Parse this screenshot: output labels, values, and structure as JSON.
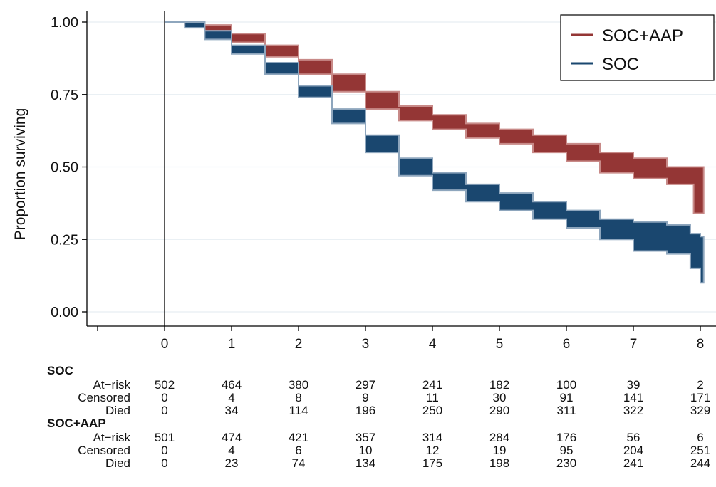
{
  "chart_data": {
    "type": "area",
    "title": "",
    "xlabel": "",
    "ylabel": "Proportion surviving",
    "xlim": [
      -1,
      8.1
    ],
    "ylim": [
      0,
      1
    ],
    "x_ticks": [
      0,
      1,
      2,
      3,
      4,
      5,
      6,
      7,
      8
    ],
    "y_ticks": [
      "0.00",
      "0.25",
      "0.50",
      "0.75",
      "1.00"
    ],
    "grid": true,
    "legend_position": "top-right",
    "colors": {
      "SOC+AAP": "#943635",
      "SOC": "#1a476f",
      "SOC_band_edge": "#8ea6bd",
      "SOC+AAP_band_edge": "#c88a88",
      "grid": "#e7eef2"
    },
    "series": [
      {
        "name": "SOC+AAP",
        "x": [
          0,
          0.3,
          0.6,
          1.0,
          1.5,
          2.0,
          2.5,
          3.0,
          3.5,
          4.0,
          4.5,
          5.0,
          5.5,
          6.0,
          6.5,
          7.0,
          7.5,
          7.9,
          8.05
        ],
        "lower": [
          1.0,
          0.99,
          0.97,
          0.93,
          0.88,
          0.82,
          0.76,
          0.7,
          0.66,
          0.63,
          0.6,
          0.58,
          0.55,
          0.52,
          0.48,
          0.46,
          0.44,
          0.34,
          0.34
        ],
        "upper": [
          1.0,
          1.0,
          0.99,
          0.96,
          0.92,
          0.87,
          0.82,
          0.76,
          0.71,
          0.68,
          0.65,
          0.63,
          0.61,
          0.58,
          0.55,
          0.53,
          0.5,
          0.5,
          0.5
        ]
      },
      {
        "name": "SOC",
        "x": [
          0,
          0.3,
          0.6,
          1.0,
          1.5,
          2.0,
          2.5,
          3.0,
          3.5,
          4.0,
          4.5,
          5.0,
          5.5,
          6.0,
          6.5,
          7.0,
          7.5,
          7.85,
          8.0,
          8.05
        ],
        "lower": [
          1.0,
          0.98,
          0.94,
          0.89,
          0.82,
          0.74,
          0.65,
          0.55,
          0.47,
          0.42,
          0.38,
          0.35,
          0.32,
          0.29,
          0.25,
          0.21,
          0.2,
          0.15,
          0.1,
          0.1
        ],
        "upper": [
          1.0,
          1.0,
          0.97,
          0.92,
          0.86,
          0.78,
          0.7,
          0.61,
          0.53,
          0.48,
          0.44,
          0.41,
          0.38,
          0.35,
          0.32,
          0.31,
          0.3,
          0.27,
          0.26,
          0.26
        ]
      }
    ],
    "risk_table": {
      "columns": [
        "0",
        "1",
        "2",
        "3",
        "4",
        "5",
        "6",
        "7",
        "8"
      ],
      "groups": [
        {
          "name": "SOC",
          "rows": [
            {
              "label": "At−risk",
              "values": [
                "502",
                "464",
                "380",
                "297",
                "241",
                "182",
                "100",
                "39",
                "2"
              ]
            },
            {
              "label": "Censored",
              "values": [
                "0",
                "4",
                "8",
                "9",
                "11",
                "30",
                "91",
                "141",
                "171"
              ]
            },
            {
              "label": "Died",
              "values": [
                "0",
                "34",
                "114",
                "196",
                "250",
                "290",
                "311",
                "322",
                "329"
              ]
            }
          ]
        },
        {
          "name": "SOC+AAP",
          "rows": [
            {
              "label": "At−risk",
              "values": [
                "501",
                "474",
                "421",
                "357",
                "314",
                "284",
                "176",
                "56",
                "6"
              ]
            },
            {
              "label": "Censored",
              "values": [
                "0",
                "4",
                "6",
                "10",
                "12",
                "19",
                "95",
                "204",
                "251"
              ]
            },
            {
              "label": "Died",
              "values": [
                "0",
                "23",
                "74",
                "134",
                "175",
                "198",
                "230",
                "241",
                "244"
              ]
            }
          ]
        }
      ]
    }
  }
}
